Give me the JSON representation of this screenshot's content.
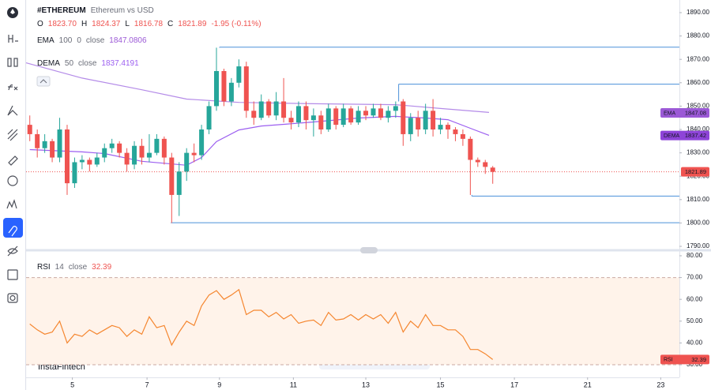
{
  "header": {
    "symbol": "#ETHEREUM",
    "description": "Ethereum vs USD",
    "ohlc": [
      {
        "key": "O",
        "value": "1823.70"
      },
      {
        "key": "H",
        "value": "1824.37"
      },
      {
        "key": "L",
        "value": "1816.78"
      },
      {
        "key": "C",
        "value": "1821.89"
      }
    ],
    "change": "-1.95 (-0.11%)"
  },
  "watermark": "InstaFintech",
  "chart_data": [
    {
      "type": "candlestick",
      "xlim": [
        -0.5,
        87
      ],
      "ylim": [
        1789,
        1895.4
      ],
      "yticks": [
        {
          "value": 1890,
          "label": "1890.00"
        },
        {
          "value": 1880,
          "label": "1880.00"
        },
        {
          "value": 1870,
          "label": "1870.00"
        },
        {
          "value": 1860,
          "label": "1860.00"
        },
        {
          "value": 1850,
          "label": "1850.00"
        },
        {
          "value": 1840,
          "label": "1840.00"
        },
        {
          "value": 1830,
          "label": "1830.00"
        },
        {
          "value": 1820,
          "label": "1820.00"
        },
        {
          "value": 1810,
          "label": "1810.00"
        },
        {
          "value": 1800,
          "label": "1800.00"
        },
        {
          "value": 1790,
          "label": "1790.00"
        }
      ],
      "xticks": [
        {
          "value": 5.7,
          "label": "5"
        },
        {
          "value": 15.7,
          "label": "7"
        },
        {
          "value": 25.4,
          "label": "9"
        },
        {
          "value": 35.3,
          "label": "11"
        },
        {
          "value": 45,
          "label": "13"
        },
        {
          "value": 55,
          "label": "15"
        },
        {
          "value": 64.9,
          "label": "17"
        },
        {
          "value": 74.7,
          "label": "21"
        },
        {
          "value": 84.5,
          "label": "23"
        }
      ],
      "up_color": "#26a69a",
      "down_color": "#ef5350",
      "candles": {
        "open": [
          1842,
          1838,
          1832,
          1835,
          1828,
          1840,
          1817,
          1826,
          1827,
          1825,
          1828,
          1832,
          1834,
          1830,
          1825,
          1833,
          1828,
          1830,
          1836,
          1828,
          1812,
          1822,
          1830,
          1829,
          1840,
          1850,
          1865,
          1852,
          1860,
          1867,
          1848,
          1845,
          1852,
          1846,
          1852,
          1845,
          1843,
          1850,
          1844,
          1846,
          1840,
          1849,
          1842,
          1849,
          1843,
          1848,
          1846,
          1849,
          1845,
          1848,
          1852,
          1838,
          1845,
          1840,
          1848,
          1840,
          1842,
          1840,
          1838,
          1836,
          1827,
          1826,
          1823.7
        ],
        "high": [
          1846,
          1840,
          1838,
          1836,
          1845,
          1842,
          1828,
          1829,
          1828,
          1830,
          1834,
          1836,
          1835,
          1832,
          1835,
          1836,
          1838,
          1838,
          1837,
          1830,
          1826,
          1832,
          1834,
          1842,
          1852,
          1875,
          1866,
          1862,
          1870,
          1869,
          1852,
          1855,
          1853,
          1856,
          1862,
          1848,
          1852,
          1852,
          1849,
          1848,
          1851,
          1850,
          1851,
          1850,
          1850,
          1850,
          1851,
          1851,
          1850,
          1852,
          1853,
          1847,
          1848,
          1851,
          1853,
          1845,
          1843,
          1841,
          1840,
          1837,
          1828,
          1827,
          1824.37
        ],
        "low": [
          1835,
          1828,
          1830,
          1826,
          1826,
          1812,
          1815,
          1823,
          1822,
          1824,
          1826,
          1830,
          1828,
          1822,
          1823,
          1825,
          1826,
          1829,
          1825,
          1800,
          1803,
          1818,
          1826,
          1827,
          1838,
          1848,
          1850,
          1850,
          1858,
          1845,
          1842,
          1844,
          1845,
          1844,
          1843,
          1840,
          1841,
          1840,
          1837,
          1838,
          1839,
          1840,
          1841,
          1842,
          1842,
          1844,
          1845,
          1844,
          1843,
          1845,
          1833,
          1835,
          1837,
          1838,
          1837,
          1838,
          1836,
          1835,
          1833,
          1812,
          1824,
          1821,
          1816.78
        ],
        "close": [
          1838,
          1832,
          1835,
          1828,
          1840,
          1817,
          1826,
          1827,
          1825,
          1828,
          1832,
          1834,
          1830,
          1825,
          1833,
          1828,
          1830,
          1836,
          1828,
          1812,
          1822,
          1830,
          1829,
          1840,
          1850,
          1865,
          1852,
          1860,
          1867,
          1848,
          1845,
          1852,
          1846,
          1852,
          1845,
          1843,
          1850,
          1844,
          1846,
          1840,
          1849,
          1842,
          1849,
          1843,
          1848,
          1846,
          1849,
          1845,
          1848,
          1850,
          1838,
          1845,
          1840,
          1848,
          1840,
          1842,
          1840,
          1838,
          1836,
          1827,
          1826,
          1824,
          1821.89
        ]
      },
      "series": [
        {
          "name": "EMA",
          "params": [
            "100",
            "0",
            "close"
          ],
          "value_label": 1847.0806,
          "color": "#b48be8",
          "x": [
            -0.5,
            7,
            15,
            21,
            28,
            38,
            49,
            55,
            61.5
          ],
          "values": [
            1868.5,
            1862,
            1857,
            1853,
            1851.6,
            1851,
            1850.6,
            1849,
            1847.3
          ]
        },
        {
          "name": "DEMA",
          "params": [
            "50",
            "close"
          ],
          "value_label": 1837.4191,
          "color": "#9c5ff0",
          "x": [
            0,
            7,
            10,
            15,
            21,
            23,
            25,
            28,
            31,
            34,
            38,
            44,
            49,
            53,
            56,
            59,
            61.5
          ],
          "values": [
            1831.4,
            1830.4,
            1829.7,
            1826.4,
            1824.7,
            1828,
            1834.8,
            1839.8,
            1841.5,
            1842.2,
            1843.2,
            1844.9,
            1845.6,
            1844.9,
            1844.2,
            1840.5,
            1837.5
          ]
        }
      ],
      "levels": [
        {
          "value": 1875.2,
          "start": 25.4
        },
        {
          "value": 1859.4,
          "start": 49.4
        },
        {
          "value": 1811.5,
          "start": 59.2
        },
        {
          "value": 1800.1,
          "start": 18.9
        }
      ],
      "level_color": "#4a90d9",
      "last_price": 1821.89,
      "tags": [
        {
          "label": "EMA",
          "value": 1847.08,
          "color": "#9b59d6"
        },
        {
          "label": "DEMA",
          "value": 1837.42,
          "color": "#8e44d8"
        },
        {
          "value": 1821.89,
          "color": "#ef5350"
        }
      ]
    },
    {
      "type": "line",
      "xlim": [
        -0.5,
        87
      ],
      "ylim": [
        24.2,
        81.8
      ],
      "yticks": [
        {
          "value": 80,
          "label": "80.00"
        },
        {
          "value": 70,
          "label": "70.00"
        },
        {
          "value": 60,
          "label": "60.00"
        },
        {
          "value": 50,
          "label": "50.00"
        },
        {
          "value": 40,
          "label": "40.00"
        },
        {
          "value": 30,
          "label": "30.00"
        }
      ],
      "bands": [
        70,
        30
      ],
      "band_fill": "#fff3ea",
      "series": [
        {
          "name": "RSI",
          "params": [
            "14",
            "close"
          ],
          "value_label": 32.39,
          "color": "#f5862f",
          "x": [
            0,
            1,
            2,
            3,
            4,
            5,
            6,
            7,
            8,
            9,
            10,
            11,
            12,
            13,
            14,
            15,
            16,
            17,
            18,
            19,
            20,
            21,
            22,
            23,
            24,
            25,
            26,
            27,
            28,
            29,
            30,
            31,
            32,
            33,
            34,
            35,
            36,
            37,
            38,
            39,
            40,
            41,
            42,
            43,
            44,
            45,
            46,
            47,
            48,
            49,
            50,
            51,
            52,
            53,
            54,
            55,
            56,
            57,
            58,
            59,
            60,
            61,
            62
          ],
          "values": [
            48.7,
            46,
            44,
            45,
            50,
            40,
            44,
            43,
            46,
            44,
            46,
            48,
            47,
            43,
            46,
            44,
            52,
            47,
            48,
            39,
            45,
            50,
            48,
            57,
            62,
            64,
            60,
            62,
            64.5,
            53,
            55,
            55,
            52,
            54,
            51,
            53,
            49,
            50,
            50.5,
            48,
            54,
            50.5,
            51,
            53,
            50.5,
            53,
            51,
            53,
            49,
            54,
            45,
            50,
            47,
            53,
            48,
            48,
            46,
            46,
            43,
            37,
            37,
            35,
            32.39
          ]
        }
      ],
      "tags": [
        {
          "label": "RSI",
          "value": 32.39,
          "color": "#ef5350"
        }
      ]
    }
  ]
}
